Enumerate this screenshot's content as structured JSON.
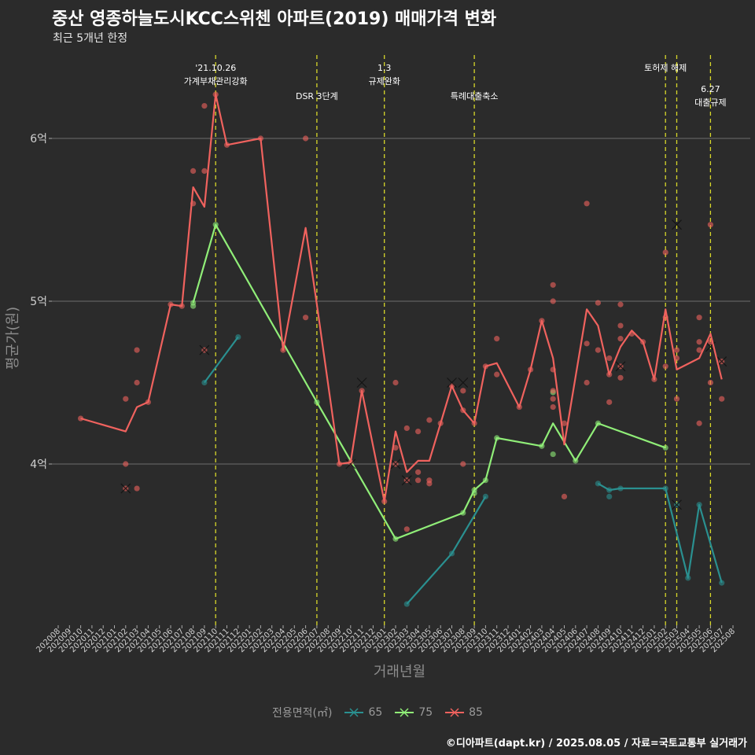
{
  "header": {
    "title": "중산 영종하늘도시KCC스위첸 아파트(2019) 매매가격 변화",
    "subtitle": "최근 5개년 한정"
  },
  "caption": "©디아파트(dapt.kr) / 2025.08.05 / 자료=국토교통부 실거래가",
  "legend": {
    "title": "전용면적(㎡)",
    "items": [
      {
        "label": "65",
        "color": "#2a9090"
      },
      {
        "label": "75",
        "color": "#90ee78"
      },
      {
        "label": "85",
        "color": "#f0625e"
      }
    ]
  },
  "chart_data": {
    "type": "line",
    "xlabel": "거래년월",
    "ylabel": "평균가(원)",
    "y_ticks": [
      {
        "value": 4.0,
        "label": "4억"
      },
      {
        "value": 5.0,
        "label": "5억"
      },
      {
        "value": 6.0,
        "label": "6억"
      }
    ],
    "ylim": [
      3.0,
      6.5
    ],
    "x_categories": [
      "202008",
      "202009",
      "202010",
      "202011",
      "202012",
      "202101",
      "202102",
      "202103",
      "202104",
      "202105",
      "202106",
      "202107",
      "202108",
      "202109",
      "202110",
      "202111",
      "202112",
      "202201",
      "202202",
      "202203",
      "202204",
      "202205",
      "202206",
      "202207",
      "202208",
      "202209",
      "202210",
      "202211",
      "202212",
      "202301",
      "202302",
      "202303",
      "202304",
      "202305",
      "202306",
      "202307",
      "202308",
      "202309",
      "202310",
      "202311",
      "202312",
      "202401",
      "202402",
      "202403",
      "202404",
      "202405",
      "202406",
      "202407",
      "202408",
      "202409",
      "202410",
      "202411",
      "202412",
      "202501",
      "202502",
      "202503",
      "202504",
      "202505",
      "202506",
      "202507",
      "202508"
    ],
    "grid": true,
    "events": [
      {
        "x": 14.0,
        "lines": [
          "'21.10.26",
          "가계부채관리강화"
        ],
        "row": 0
      },
      {
        "x": 23.0,
        "lines": [
          "DSR 3단계"
        ],
        "row": 1
      },
      {
        "x": 29.0,
        "lines": [
          "1.3",
          "규제완화"
        ],
        "row": 0
      },
      {
        "x": 37.0,
        "lines": [
          "특례대출축소"
        ],
        "row": 1
      },
      {
        "x": 54.0,
        "lines": [
          "토허제 해제"
        ],
        "row": 0
      },
      {
        "x": 55.0,
        "lines": [],
        "row": 0
      },
      {
        "x": 58.0,
        "lines": [
          "6.27",
          "대출규제"
        ],
        "row": 2
      }
    ],
    "series": [
      {
        "name": "65",
        "color": "#2a9090",
        "line": [
          [
            13,
            4.5
          ],
          [
            16,
            4.78
          ],
          [
            null,
            null
          ],
          [
            31,
            3.14
          ],
          [
            35,
            3.45
          ],
          [
            38,
            3.8
          ],
          [
            null,
            null
          ],
          [
            48,
            3.88
          ],
          [
            49,
            3.84
          ],
          [
            50,
            3.85
          ],
          [
            54,
            3.85
          ],
          [
            56,
            3.3
          ],
          [
            57,
            3.75
          ],
          [
            59,
            3.27
          ]
        ],
        "points": [
          [
            13,
            4.5
          ],
          [
            16,
            4.78
          ],
          [
            31,
            3.14
          ],
          [
            35,
            3.45
          ],
          [
            38,
            3.8
          ],
          [
            48,
            3.88
          ],
          [
            49,
            3.84
          ],
          [
            49,
            3.8
          ],
          [
            50,
            3.85
          ],
          [
            54,
            3.85
          ],
          [
            55,
            3.75
          ],
          [
            56,
            3.3
          ],
          [
            57,
            3.75
          ],
          [
            59,
            3.27
          ]
        ],
        "crosses": [
          [
            55,
            3.75
          ]
        ]
      },
      {
        "name": "75",
        "color": "#90ee78",
        "line": [
          [
            12,
            4.99
          ],
          [
            14,
            5.47
          ],
          [
            23,
            4.38
          ],
          [
            30,
            3.54
          ],
          [
            36,
            3.7
          ],
          [
            37,
            3.84
          ],
          [
            38,
            3.9
          ],
          [
            39,
            4.16
          ],
          [
            43,
            4.11
          ],
          [
            44,
            4.25
          ],
          [
            46,
            4.02
          ],
          [
            48,
            4.25
          ],
          [
            54,
            4.1
          ]
        ],
        "points": [
          [
            12,
            4.99
          ],
          [
            12,
            4.97
          ],
          [
            14,
            5.47
          ],
          [
            23,
            4.38
          ],
          [
            30,
            3.54
          ],
          [
            36,
            3.7
          ],
          [
            37,
            3.84
          ],
          [
            37,
            3.82
          ],
          [
            38,
            3.9
          ],
          [
            39,
            4.16
          ],
          [
            43,
            4.11
          ],
          [
            44,
            4.44
          ],
          [
            44,
            4.06
          ],
          [
            46,
            4.02
          ],
          [
            48,
            4.25
          ],
          [
            54,
            4.1
          ]
        ],
        "crosses": []
      },
      {
        "name": "85",
        "color": "#f0625e",
        "line": [
          [
            2,
            4.28
          ],
          [
            6,
            4.2
          ],
          [
            7,
            4.35
          ],
          [
            8,
            4.38
          ],
          [
            10,
            4.98
          ],
          [
            11,
            4.97
          ],
          [
            12,
            5.7
          ],
          [
            13,
            5.58
          ],
          [
            14,
            6.27
          ],
          [
            15,
            5.96
          ],
          [
            18,
            6.0
          ],
          [
            20,
            4.7
          ],
          [
            22,
            5.45
          ],
          [
            23,
            4.98
          ],
          [
            25,
            4.0
          ],
          [
            26,
            4.01
          ],
          [
            27,
            4.45
          ],
          [
            29,
            3.77
          ],
          [
            30,
            4.2
          ],
          [
            31,
            3.95
          ],
          [
            32,
            4.02
          ],
          [
            33,
            4.02
          ],
          [
            34,
            4.25
          ],
          [
            35,
            4.48
          ],
          [
            36,
            4.33
          ],
          [
            37,
            4.25
          ],
          [
            38,
            4.6
          ],
          [
            39,
            4.62
          ],
          [
            41,
            4.35
          ],
          [
            42,
            4.58
          ],
          [
            43,
            4.88
          ],
          [
            44,
            4.65
          ],
          [
            45,
            4.12
          ],
          [
            47,
            4.95
          ],
          [
            48,
            4.85
          ],
          [
            49,
            4.55
          ],
          [
            50,
            4.72
          ],
          [
            51,
            4.82
          ],
          [
            52,
            4.75
          ],
          [
            53,
            4.52
          ],
          [
            54,
            4.95
          ],
          [
            55,
            4.58
          ],
          [
            57,
            4.65
          ],
          [
            58,
            4.8
          ],
          [
            59,
            4.52
          ]
        ],
        "points": [
          [
            2,
            4.28
          ],
          [
            6,
            4.4
          ],
          [
            6,
            4.0
          ],
          [
            6,
            3.85
          ],
          [
            7,
            4.7
          ],
          [
            7,
            4.5
          ],
          [
            7,
            3.85
          ],
          [
            8,
            4.38
          ],
          [
            10,
            4.98
          ],
          [
            11,
            4.97
          ],
          [
            12,
            5.8
          ],
          [
            12,
            5.6
          ],
          [
            13,
            6.2
          ],
          [
            13,
            5.8
          ],
          [
            13,
            4.7
          ],
          [
            14,
            6.27
          ],
          [
            15,
            5.96
          ],
          [
            18,
            6.0
          ],
          [
            20,
            4.7
          ],
          [
            22,
            6.0
          ],
          [
            22,
            4.9
          ],
          [
            25,
            4.0
          ],
          [
            26,
            4.01
          ],
          [
            27,
            4.45
          ],
          [
            29,
            3.77
          ],
          [
            30,
            4.5
          ],
          [
            30,
            4.1
          ],
          [
            30,
            4.0
          ],
          [
            31,
            4.22
          ],
          [
            31,
            3.9
          ],
          [
            31,
            3.6
          ],
          [
            32,
            4.2
          ],
          [
            32,
            3.95
          ],
          [
            32,
            3.9
          ],
          [
            33,
            4.27
          ],
          [
            33,
            3.9
          ],
          [
            33,
            3.88
          ],
          [
            34,
            4.25
          ],
          [
            35,
            4.48
          ],
          [
            36,
            4.45
          ],
          [
            36,
            4.33
          ],
          [
            36,
            4.0
          ],
          [
            37,
            4.25
          ],
          [
            38,
            4.6
          ],
          [
            39,
            4.77
          ],
          [
            39,
            4.55
          ],
          [
            41,
            4.35
          ],
          [
            42,
            4.58
          ],
          [
            43,
            4.88
          ],
          [
            44,
            5.1
          ],
          [
            44,
            5.0
          ],
          [
            44,
            4.58
          ],
          [
            44,
            4.45
          ],
          [
            44,
            4.4
          ],
          [
            44,
            4.35
          ],
          [
            45,
            4.25
          ],
          [
            45,
            3.8
          ],
          [
            47,
            5.6
          ],
          [
            47,
            4.74
          ],
          [
            47,
            4.5
          ],
          [
            48,
            4.99
          ],
          [
            48,
            4.7
          ],
          [
            49,
            4.65
          ],
          [
            49,
            4.55
          ],
          [
            49,
            4.38
          ],
          [
            50,
            4.98
          ],
          [
            50,
            4.85
          ],
          [
            50,
            4.77
          ],
          [
            50,
            4.6
          ],
          [
            50,
            4.53
          ],
          [
            51,
            4.8
          ],
          [
            52,
            4.75
          ],
          [
            53,
            4.52
          ],
          [
            54,
            5.3
          ],
          [
            54,
            4.9
          ],
          [
            54,
            4.6
          ],
          [
            55,
            4.7
          ],
          [
            55,
            4.65
          ],
          [
            55,
            4.4
          ],
          [
            57,
            4.9
          ],
          [
            57,
            4.75
          ],
          [
            57,
            4.7
          ],
          [
            57,
            4.25
          ],
          [
            58,
            5.47
          ],
          [
            58,
            4.75
          ],
          [
            58,
            4.5
          ],
          [
            59,
            4.63
          ],
          [
            59,
            4.4
          ]
        ],
        "crosses": [
          [
            6,
            3.85
          ],
          [
            13,
            4.7
          ],
          [
            27,
            4.5
          ],
          [
            26,
            4.0
          ],
          [
            30,
            4.0
          ],
          [
            31,
            3.9
          ],
          [
            35,
            4.5
          ],
          [
            36,
            4.5
          ],
          [
            50,
            4.6
          ],
          [
            55,
            5.47
          ],
          [
            58,
            4.72
          ],
          [
            59,
            4.63
          ]
        ]
      }
    ]
  }
}
